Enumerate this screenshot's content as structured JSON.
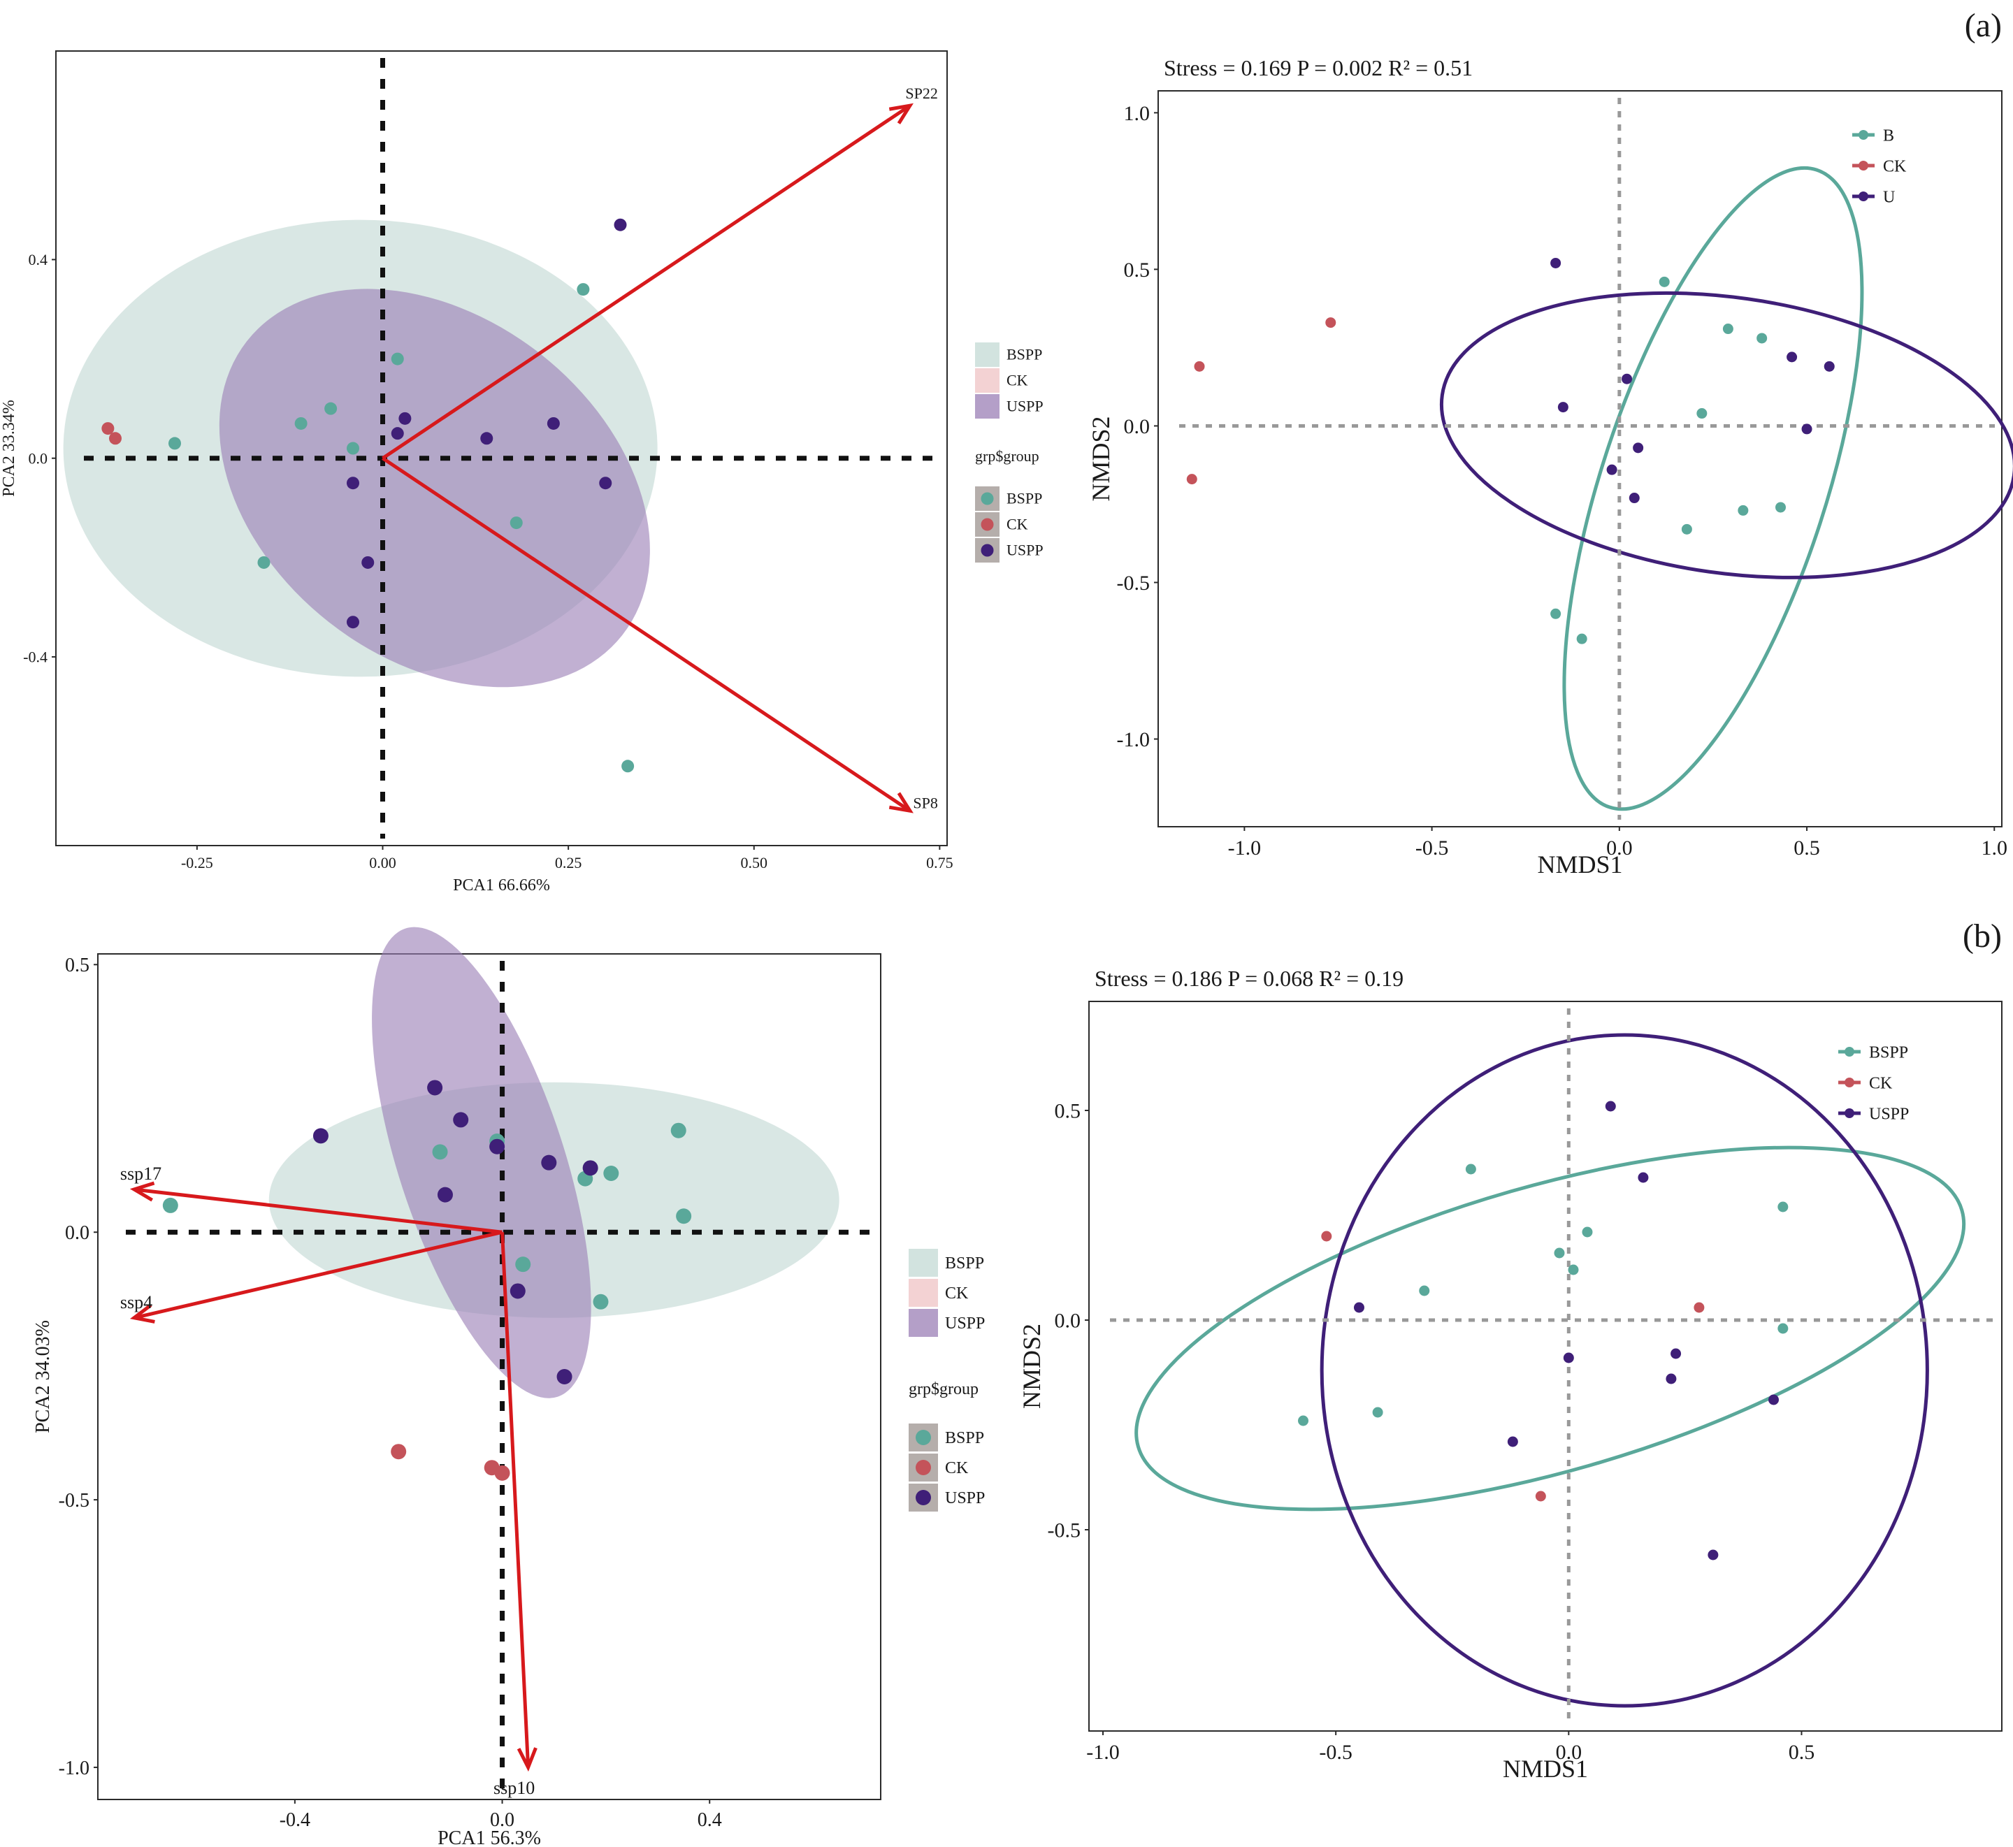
{
  "panel_labels": {
    "a": "(a)",
    "b": "(b)"
  },
  "colors": {
    "B": "#5aa89a",
    "CK": "#c4535a",
    "U": "#3f1f78",
    "B_fill": "#d2e3df",
    "CK_fill": "#f3d2d3",
    "U_fill": "#9b7fb6",
    "arrow": "#d7191c"
  },
  "chart_data": [
    {
      "id": "a-pca",
      "type": "scatter",
      "xlabel": "PCA1 66.66%",
      "ylabel": "PCA2 33.34%",
      "xlim": [
        -0.44,
        0.76
      ],
      "ylim": [
        -0.78,
        0.82
      ],
      "xticks": [
        -0.25,
        0.0,
        0.25,
        0.5,
        0.75
      ],
      "xtick_labels": [
        "-0.25",
        "0.00",
        "0.25",
        "0.50",
        "0.75"
      ],
      "yticks": [
        -0.4,
        0.0,
        0.4
      ],
      "ytick_labels": [
        "-0.4",
        "0.0",
        "0.4"
      ],
      "groups": [
        "BSPP",
        "CK",
        "USPP"
      ],
      "legend_fill_title": "",
      "legend_point_title": "grp$group",
      "ellipses": [
        {
          "group": "BSPP",
          "cx": -0.03,
          "cy": 0.02,
          "rx": 0.4,
          "ry": 0.46,
          "angle": 0
        },
        {
          "group": "USPP",
          "cx": 0.07,
          "cy": -0.06,
          "rx": 0.23,
          "ry": 0.48,
          "angle": -52
        }
      ],
      "arrows": [
        {
          "label": "SP22",
          "x": 0.71,
          "y": 0.71
        },
        {
          "label": "SP8",
          "x": 0.71,
          "y": -0.71
        }
      ],
      "points": [
        {
          "group": "BSPP",
          "x": -0.28,
          "y": 0.03
        },
        {
          "group": "BSPP",
          "x": -0.11,
          "y": 0.07
        },
        {
          "group": "BSPP",
          "x": -0.07,
          "y": 0.1
        },
        {
          "group": "BSPP",
          "x": -0.04,
          "y": 0.02
        },
        {
          "group": "BSPP",
          "x": 0.02,
          "y": 0.2
        },
        {
          "group": "BSPP",
          "x": 0.27,
          "y": 0.34
        },
        {
          "group": "BSPP",
          "x": 0.18,
          "y": -0.13
        },
        {
          "group": "BSPP",
          "x": -0.16,
          "y": -0.21
        },
        {
          "group": "BSPP",
          "x": 0.33,
          "y": -0.62
        },
        {
          "group": "CK",
          "x": -0.37,
          "y": 0.06
        },
        {
          "group": "CK",
          "x": -0.36,
          "y": 0.04
        },
        {
          "group": "USPP",
          "x": 0.32,
          "y": 0.47
        },
        {
          "group": "USPP",
          "x": 0.03,
          "y": 0.08
        },
        {
          "group": "USPP",
          "x": 0.02,
          "y": 0.05
        },
        {
          "group": "USPP",
          "x": 0.14,
          "y": 0.04
        },
        {
          "group": "USPP",
          "x": 0.23,
          "y": 0.07
        },
        {
          "group": "USPP",
          "x": 0.3,
          "y": -0.05
        },
        {
          "group": "USPP",
          "x": -0.04,
          "y": -0.05
        },
        {
          "group": "USPP",
          "x": -0.02,
          "y": -0.21
        },
        {
          "group": "USPP",
          "x": -0.04,
          "y": -0.33
        }
      ]
    },
    {
      "id": "a-nmds",
      "type": "scatter",
      "title": "Stress = 0.169    P = 0.002    R² = 0.51",
      "xlabel": "NMDS1",
      "ylabel": "NMDS2",
      "xlim": [
        -1.23,
        1.02
      ],
      "ylim": [
        -1.28,
        1.07
      ],
      "xticks": [
        -1.0,
        -0.5,
        0.0,
        0.5,
        1.0
      ],
      "xtick_labels": [
        "-1.0",
        "-0.5",
        "0.0",
        "0.5",
        "1.0"
      ],
      "yticks": [
        -1.0,
        -0.5,
        0.0,
        0.5,
        1.0
      ],
      "ytick_labels": [
        "-1.0",
        "-0.5",
        "0.0",
        "0.5",
        "1.0"
      ],
      "groups": [
        "B",
        "CK",
        "U"
      ],
      "ellipses": [
        {
          "group": "B",
          "cx": 0.25,
          "cy": -0.2,
          "rx": 0.3,
          "ry": 1.07,
          "angle": 18
        },
        {
          "group": "U",
          "cx": 0.29,
          "cy": -0.03,
          "rx": 0.77,
          "ry": 0.44,
          "angle": 8
        }
      ],
      "points": [
        {
          "group": "B",
          "x": 0.12,
          "y": 0.46
        },
        {
          "group": "B",
          "x": 0.29,
          "y": 0.31
        },
        {
          "group": "B",
          "x": 0.38,
          "y": 0.28
        },
        {
          "group": "B",
          "x": 0.22,
          "y": 0.04
        },
        {
          "group": "B",
          "x": 0.18,
          "y": -0.33
        },
        {
          "group": "B",
          "x": 0.33,
          "y": -0.27
        },
        {
          "group": "B",
          "x": 0.43,
          "y": -0.26
        },
        {
          "group": "B",
          "x": -0.17,
          "y": -0.6
        },
        {
          "group": "B",
          "x": -0.1,
          "y": -0.68
        },
        {
          "group": "CK",
          "x": -0.77,
          "y": 0.33
        },
        {
          "group": "CK",
          "x": -1.12,
          "y": 0.19
        },
        {
          "group": "CK",
          "x": -1.14,
          "y": -0.17
        },
        {
          "group": "U",
          "x": -0.17,
          "y": 0.52
        },
        {
          "group": "U",
          "x": 0.02,
          "y": 0.15
        },
        {
          "group": "U",
          "x": -0.15,
          "y": 0.06
        },
        {
          "group": "U",
          "x": 0.46,
          "y": 0.22
        },
        {
          "group": "U",
          "x": 0.56,
          "y": 0.19
        },
        {
          "group": "U",
          "x": 0.05,
          "y": -0.07
        },
        {
          "group": "U",
          "x": -0.02,
          "y": -0.14
        },
        {
          "group": "U",
          "x": 0.04,
          "y": -0.23
        },
        {
          "group": "U",
          "x": 0.5,
          "y": -0.01
        }
      ]
    },
    {
      "id": "b-pca",
      "type": "scatter",
      "xlabel": "PCA1 56.3%",
      "ylabel": "PCA2 34.03%",
      "xlim": [
        -0.78,
        0.73
      ],
      "ylim": [
        -1.06,
        0.52
      ],
      "xticks": [
        -0.4,
        0.0,
        0.4
      ],
      "xtick_labels": [
        "-0.4",
        "0.0",
        "0.4"
      ],
      "yticks": [
        -1.0,
        -0.5,
        0.0,
        0.5
      ],
      "ytick_labels": [
        "-1.0",
        "-0.5",
        "0.0",
        "0.5"
      ],
      "groups": [
        "BSPP",
        "CK",
        "USPP"
      ],
      "legend_fill_title": "",
      "legend_point_title": "grp$group",
      "ellipses": [
        {
          "group": "BSPP",
          "cx": 0.1,
          "cy": 0.06,
          "rx": 0.55,
          "ry": 0.22,
          "angle": 0
        },
        {
          "group": "USPP",
          "cx": -0.04,
          "cy": 0.13,
          "rx": 0.16,
          "ry": 0.46,
          "angle": -18
        }
      ],
      "arrows": [
        {
          "label": "ssp17",
          "x": -0.71,
          "y": 0.08
        },
        {
          "label": "ssp4",
          "x": -0.71,
          "y": -0.16
        },
        {
          "label": "ssp10",
          "x": 0.05,
          "y": -1.0
        }
      ],
      "points": [
        {
          "group": "BSPP",
          "x": -0.64,
          "y": 0.05
        },
        {
          "group": "BSPP",
          "x": -0.12,
          "y": 0.15
        },
        {
          "group": "BSPP",
          "x": -0.01,
          "y": 0.17
        },
        {
          "group": "BSPP",
          "x": 0.04,
          "y": -0.06
        },
        {
          "group": "BSPP",
          "x": 0.16,
          "y": 0.1
        },
        {
          "group": "BSPP",
          "x": 0.21,
          "y": 0.11
        },
        {
          "group": "BSPP",
          "x": 0.34,
          "y": 0.19
        },
        {
          "group": "BSPP",
          "x": 0.35,
          "y": 0.03
        },
        {
          "group": "BSPP",
          "x": 0.19,
          "y": -0.13
        },
        {
          "group": "CK",
          "x": -0.2,
          "y": -0.41
        },
        {
          "group": "CK",
          "x": -0.02,
          "y": -0.44
        },
        {
          "group": "CK",
          "x": 0.0,
          "y": -0.45
        },
        {
          "group": "USPP",
          "x": -0.35,
          "y": 0.18
        },
        {
          "group": "USPP",
          "x": -0.13,
          "y": 0.27
        },
        {
          "group": "USPP",
          "x": -0.08,
          "y": 0.21
        },
        {
          "group": "USPP",
          "x": -0.01,
          "y": 0.16
        },
        {
          "group": "USPP",
          "x": 0.09,
          "y": 0.13
        },
        {
          "group": "USPP",
          "x": 0.17,
          "y": 0.12
        },
        {
          "group": "USPP",
          "x": -0.11,
          "y": 0.07
        },
        {
          "group": "USPP",
          "x": 0.03,
          "y": -0.11
        },
        {
          "group": "USPP",
          "x": 0.12,
          "y": -0.27
        }
      ]
    },
    {
      "id": "b-nmds",
      "type": "scatter",
      "title": "Stress = 0.186    P = 0.068    R² = 0.19",
      "xlabel": "NMDS1",
      "ylabel": "NMDS2",
      "xlim": [
        -1.03,
        0.93
      ],
      "ylim": [
        -0.98,
        0.76
      ],
      "xticks": [
        -1.0,
        -0.5,
        0.0,
        0.5
      ],
      "xtick_labels": [
        "-1.0",
        "-0.5",
        "0.0",
        "0.5"
      ],
      "yticks": [
        -0.5,
        0.0,
        0.5
      ],
      "ytick_labels": [
        "-0.5",
        "0.0",
        "0.5"
      ],
      "groups": [
        "BSPP",
        "CK",
        "USPP"
      ],
      "ellipses": [
        {
          "group": "BSPP",
          "cx": -0.04,
          "cy": -0.02,
          "rx": 0.92,
          "ry": 0.34,
          "angle": -16
        },
        {
          "group": "USPP",
          "cx": 0.12,
          "cy": -0.12,
          "rx": 0.65,
          "ry": 0.8,
          "angle": 0
        }
      ],
      "points": [
        {
          "group": "BSPP",
          "x": -0.21,
          "y": 0.36
        },
        {
          "group": "BSPP",
          "x": -0.02,
          "y": 0.16
        },
        {
          "group": "BSPP",
          "x": 0.01,
          "y": 0.12
        },
        {
          "group": "BSPP",
          "x": 0.04,
          "y": 0.21
        },
        {
          "group": "BSPP",
          "x": -0.31,
          "y": 0.07
        },
        {
          "group": "BSPP",
          "x": 0.46,
          "y": 0.27
        },
        {
          "group": "BSPP",
          "x": 0.46,
          "y": -0.02
        },
        {
          "group": "BSPP",
          "x": -0.57,
          "y": -0.24
        },
        {
          "group": "BSPP",
          "x": -0.41,
          "y": -0.22
        },
        {
          "group": "CK",
          "x": -0.52,
          "y": 0.2
        },
        {
          "group": "CK",
          "x": 0.28,
          "y": 0.03
        },
        {
          "group": "CK",
          "x": -0.06,
          "y": -0.42
        },
        {
          "group": "USPP",
          "x": 0.09,
          "y": 0.51
        },
        {
          "group": "USPP",
          "x": 0.16,
          "y": 0.34
        },
        {
          "group": "USPP",
          "x": -0.45,
          "y": 0.03
        },
        {
          "group": "USPP",
          "x": 0.0,
          "y": -0.09
        },
        {
          "group": "USPP",
          "x": 0.23,
          "y": -0.08
        },
        {
          "group": "USPP",
          "x": 0.22,
          "y": -0.14
        },
        {
          "group": "USPP",
          "x": -0.12,
          "y": -0.29
        },
        {
          "group": "USPP",
          "x": 0.44,
          "y": -0.19
        },
        {
          "group": "USPP",
          "x": 0.31,
          "y": -0.56
        }
      ]
    }
  ]
}
